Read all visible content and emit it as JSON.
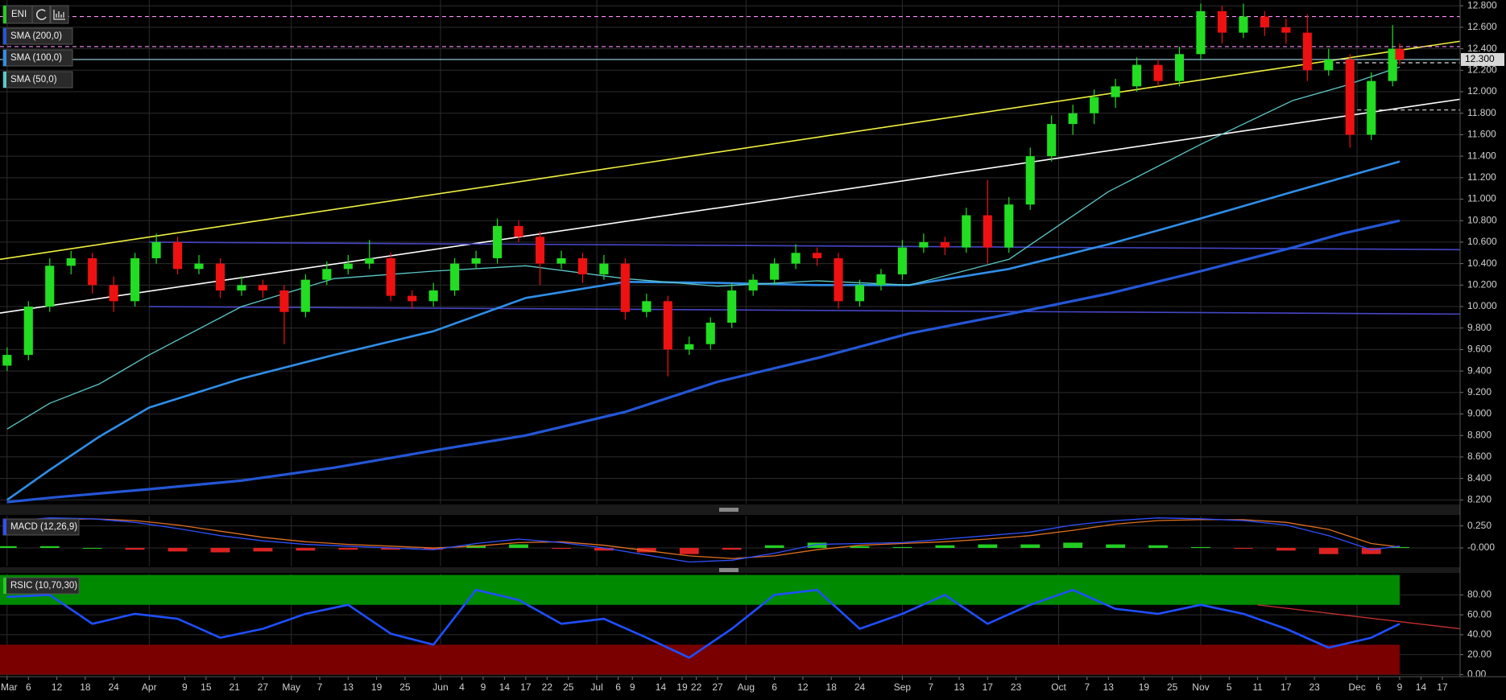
{
  "chart_data": [
    {
      "type": "candlestick",
      "title": "ENI",
      "xlim": [
        -1,
        204.5
      ],
      "ylim": [
        8.165,
        12.854
      ],
      "yticks": [
        {
          "value": 8.2,
          "label": "8.200"
        },
        {
          "value": 8.4,
          "label": "8.400"
        },
        {
          "value": 8.6,
          "label": "8.600"
        },
        {
          "value": 8.8,
          "label": "8.800"
        },
        {
          "value": 9.0,
          "label": "9.000"
        },
        {
          "value": 9.2,
          "label": "9.200"
        },
        {
          "value": 9.4,
          "label": "9.400"
        },
        {
          "value": 9.6,
          "label": "9.600"
        },
        {
          "value": 9.8,
          "label": "9.800"
        },
        {
          "value": 10.0,
          "label": "10.000"
        },
        {
          "value": 10.2,
          "label": "10.200"
        },
        {
          "value": 10.4,
          "label": "10.400"
        },
        {
          "value": 10.6,
          "label": "10.600"
        },
        {
          "value": 10.8,
          "label": "10.800"
        },
        {
          "value": 11.0,
          "label": "11.000"
        },
        {
          "value": 11.2,
          "label": "11.200"
        },
        {
          "value": 11.4,
          "label": "11.400"
        },
        {
          "value": 11.6,
          "label": "11.600"
        },
        {
          "value": 11.8,
          "label": "11.800"
        },
        {
          "value": 12.0,
          "label": "12.000"
        },
        {
          "value": 12.2,
          "label": "12.200"
        },
        {
          "value": 12.4,
          "label": "12.400"
        },
        {
          "value": 12.6,
          "label": "12.600"
        },
        {
          "value": 12.8,
          "label": "12.800"
        }
      ],
      "grid": true,
      "up_color": "#22dd22",
      "down_color": "#ee1111",
      "x": [
        0,
        3,
        6,
        9,
        12,
        15,
        18,
        21,
        24,
        27,
        30,
        33,
        36,
        39,
        42,
        45,
        48,
        51,
        54,
        57,
        60,
        63,
        66,
        69,
        72,
        75,
        78,
        81,
        84,
        87,
        90,
        93,
        96,
        99,
        102,
        105,
        108,
        111,
        114,
        117,
        120,
        123,
        126,
        129,
        132,
        135,
        138,
        141,
        144,
        147,
        150,
        153,
        156,
        159,
        162,
        165,
        168,
        171,
        174,
        177,
        180,
        183,
        186,
        189,
        192,
        195,
        196
      ],
      "open": [
        9.45,
        9.55,
        10.0,
        10.38,
        10.45,
        10.2,
        10.05,
        10.45,
        10.6,
        10.35,
        10.4,
        10.15,
        10.2,
        10.15,
        9.95,
        10.25,
        10.35,
        10.4,
        10.45,
        10.1,
        10.05,
        10.15,
        10.4,
        10.45,
        10.75,
        10.65,
        10.4,
        10.45,
        10.3,
        10.4,
        9.95,
        10.05,
        9.6,
        9.65,
        9.85,
        10.15,
        10.25,
        10.4,
        10.5,
        10.45,
        10.05,
        10.2,
        10.3,
        10.55,
        10.6,
        10.55,
        10.85,
        10.55,
        10.95,
        11.4,
        11.7,
        11.8,
        11.95,
        12.05,
        12.25,
        12.1,
        12.35,
        12.75,
        12.55,
        12.7,
        12.6,
        12.55,
        12.2,
        12.3,
        11.6,
        12.1,
        12.4
      ],
      "high": [
        9.62,
        10.05,
        10.45,
        10.52,
        10.5,
        10.28,
        10.5,
        10.68,
        10.65,
        10.48,
        10.45,
        10.28,
        10.25,
        10.2,
        10.3,
        10.42,
        10.48,
        10.62,
        10.5,
        10.15,
        10.22,
        10.45,
        10.52,
        10.82,
        10.8,
        10.7,
        10.52,
        10.5,
        10.48,
        10.45,
        10.12,
        10.1,
        9.72,
        9.9,
        10.22,
        10.3,
        10.45,
        10.58,
        10.55,
        10.5,
        10.25,
        10.35,
        10.62,
        10.68,
        10.65,
        10.92,
        11.18,
        11.02,
        11.48,
        11.78,
        11.88,
        12.02,
        12.12,
        12.32,
        12.3,
        12.42,
        12.82,
        12.8,
        12.82,
        12.75,
        12.68,
        12.72,
        12.4,
        12.35,
        12.18,
        12.62,
        12.45
      ],
      "low": [
        9.4,
        9.5,
        9.95,
        10.3,
        10.12,
        9.95,
        10.0,
        10.4,
        10.3,
        10.3,
        10.08,
        10.1,
        10.08,
        9.65,
        9.9,
        10.2,
        10.3,
        10.35,
        10.05,
        9.98,
        10.0,
        10.1,
        10.35,
        10.4,
        10.6,
        10.2,
        10.35,
        10.22,
        10.25,
        9.88,
        9.9,
        9.35,
        9.55,
        9.6,
        9.8,
        10.1,
        10.2,
        10.35,
        10.38,
        9.98,
        10.0,
        10.15,
        10.25,
        10.5,
        10.48,
        10.5,
        10.4,
        10.5,
        10.9,
        11.35,
        11.6,
        11.7,
        11.85,
        12.0,
        12.05,
        12.05,
        12.3,
        12.45,
        12.5,
        12.52,
        12.45,
        12.1,
        12.15,
        11.48,
        11.55,
        12.05,
        12.25
      ],
      "close": [
        9.55,
        10.0,
        10.38,
        10.45,
        10.2,
        10.05,
        10.45,
        10.6,
        10.35,
        10.4,
        10.15,
        10.2,
        10.15,
        9.95,
        10.25,
        10.35,
        10.4,
        10.45,
        10.1,
        10.05,
        10.15,
        10.4,
        10.45,
        10.75,
        10.65,
        10.4,
        10.45,
        10.3,
        10.4,
        9.95,
        10.05,
        9.6,
        9.65,
        9.85,
        10.15,
        10.25,
        10.4,
        10.5,
        10.45,
        10.05,
        10.2,
        10.3,
        10.55,
        10.6,
        10.55,
        10.85,
        10.55,
        10.95,
        11.4,
        11.7,
        11.8,
        11.95,
        12.05,
        12.25,
        12.1,
        12.35,
        12.75,
        12.55,
        12.7,
        12.6,
        12.55,
        12.2,
        12.3,
        11.6,
        12.1,
        12.4,
        12.3
      ],
      "series": [
        {
          "name": "SMA (200,0)",
          "color": "#2456d6",
          "line_width": 3.2,
          "x": [
            0,
            6,
            13,
            20,
            33,
            46,
            60,
            73,
            87,
            100,
            114,
            127,
            141,
            155,
            168,
            181,
            188,
            196
          ],
          "values": [
            8.18,
            8.22,
            8.26,
            8.3,
            8.38,
            8.5,
            8.66,
            8.8,
            9.02,
            9.3,
            9.52,
            9.75,
            9.93,
            10.12,
            10.33,
            10.55,
            10.68,
            10.8
          ]
        },
        {
          "name": "SMA (100,0)",
          "color": "#2f8ee8",
          "line_width": 2.6,
          "x": [
            0,
            6,
            13,
            20,
            33,
            46,
            60,
            73,
            87,
            100,
            114,
            127,
            141,
            155,
            168,
            181,
            188,
            196
          ],
          "values": [
            8.2,
            8.48,
            8.79,
            9.06,
            9.33,
            9.55,
            9.77,
            10.08,
            10.23,
            10.22,
            10.2,
            10.2,
            10.35,
            10.58,
            10.82,
            11.07,
            11.2,
            11.35
          ]
        },
        {
          "name": "SMA (50,0)",
          "color": "#5cc8c8",
          "line_width": 1.3,
          "x": [
            0,
            6,
            13,
            20,
            33,
            46,
            60,
            73,
            87,
            100,
            114,
            127,
            141,
            155,
            168,
            181,
            188,
            196
          ],
          "values": [
            8.86,
            9.1,
            9.28,
            9.55,
            10.0,
            10.26,
            10.33,
            10.38,
            10.26,
            10.19,
            10.24,
            10.2,
            10.44,
            11.07,
            11.51,
            11.92,
            12.05,
            12.23
          ]
        }
      ],
      "trendlines": [
        {
          "color": "#f0f040",
          "x": [
            -1,
            204.5
          ],
          "y": [
            10.44,
            12.47
          ]
        },
        {
          "color": "#ffffff",
          "x": [
            -1,
            204.5
          ],
          "y": [
            9.94,
            11.93
          ]
        },
        {
          "color": "#4646c8",
          "x": [
            20,
            204.5
          ],
          "y": [
            10.6,
            10.53
          ]
        },
        {
          "color": "#4646c8",
          "x": [
            20,
            204.5
          ],
          "y": [
            10.0,
            9.93
          ]
        }
      ],
      "levels": [
        {
          "value": 12.7,
          "from": -1,
          "color": "#ff90ff",
          "dash": true
        },
        {
          "value": 12.42,
          "from": -1,
          "color": "#ff90ff",
          "dash": true
        },
        {
          "value": 12.3,
          "from": -1,
          "color": "#9fd8e8",
          "dash": false
        },
        {
          "value": 12.27,
          "from": 186,
          "color": "#dddddd",
          "dash": true
        },
        {
          "value": 11.83,
          "from": 189,
          "color": "#dddddd",
          "dash": true
        }
      ],
      "last_price": {
        "value": 12.3,
        "label": "12.300"
      }
    },
    {
      "type": "macd",
      "title": "MACD (12,26,9)",
      "xlim": [
        -1,
        204.5
      ],
      "ylim": [
        -0.21,
        0.365
      ],
      "yticks": [
        {
          "value": 0.25,
          "label": "0.250"
        },
        {
          "value": 0,
          "label": "-0.000"
        }
      ],
      "grid": true,
      "x": [
        0,
        6,
        12,
        18,
        24,
        30,
        36,
        42,
        48,
        54,
        60,
        66,
        72,
        78,
        84,
        90,
        96,
        102,
        108,
        114,
        120,
        126,
        132,
        138,
        144,
        150,
        156,
        162,
        168,
        174,
        180,
        186,
        192,
        196
      ],
      "macd": {
        "color": "#3050ff",
        "values": [
          0.3,
          0.34,
          0.33,
          0.29,
          0.22,
          0.14,
          0.08,
          0.04,
          0.02,
          0.0,
          -0.02,
          0.05,
          0.1,
          0.06,
          0.0,
          -0.08,
          -0.16,
          -0.14,
          -0.06,
          0.04,
          0.05,
          0.06,
          0.1,
          0.14,
          0.18,
          0.26,
          0.31,
          0.34,
          0.33,
          0.31,
          0.26,
          0.14,
          -0.02,
          0.02
        ]
      },
      "signal": {
        "color": "#e07020",
        "values": [
          0.28,
          0.32,
          0.33,
          0.31,
          0.26,
          0.19,
          0.12,
          0.07,
          0.04,
          0.02,
          0.0,
          0.02,
          0.06,
          0.07,
          0.03,
          -0.03,
          -0.09,
          -0.12,
          -0.09,
          -0.02,
          0.03,
          0.05,
          0.07,
          0.1,
          0.14,
          0.2,
          0.27,
          0.31,
          0.32,
          0.32,
          0.29,
          0.21,
          0.05,
          0.01
        ]
      },
      "histogram": {
        "up_color": "#22cc22",
        "down_color": "#dd2222",
        "values": [
          0.02,
          0.02,
          0.0,
          -0.02,
          -0.04,
          -0.05,
          -0.04,
          -0.03,
          -0.02,
          -0.02,
          -0.02,
          0.03,
          0.04,
          -0.01,
          -0.03,
          -0.05,
          -0.07,
          -0.02,
          0.03,
          0.06,
          0.02,
          0.01,
          0.03,
          0.04,
          0.04,
          0.06,
          0.04,
          0.03,
          0.01,
          -0.01,
          -0.03,
          -0.07,
          -0.07,
          0.01
        ]
      }
    },
    {
      "type": "line",
      "title": "RSIC (10,70,30)",
      "xlim": [
        -1,
        204.5
      ],
      "ylim": [
        -2.1,
        101.3
      ],
      "yticks": [
        {
          "value": 80,
          "label": "80.00"
        },
        {
          "value": 60,
          "label": "60.00"
        },
        {
          "value": 40,
          "label": "40.00"
        },
        {
          "value": 20,
          "label": "20.00"
        },
        {
          "value": 0,
          "label": "0.00"
        }
      ],
      "grid": true,
      "bands": [
        {
          "from": 70,
          "to": 100,
          "x": [
            -1,
            196
          ],
          "color": "#008a00"
        },
        {
          "from": 0,
          "to": 30,
          "x": [
            -1,
            196
          ],
          "color": "#7a0000"
        }
      ],
      "trendlines": [
        {
          "color": "#c83030",
          "x": [
            176,
            204.5
          ],
          "y": [
            70,
            46
          ]
        }
      ],
      "xticks": [
        {
          "value": 0,
          "label": "Mar"
        },
        {
          "value": 3,
          "label": "6"
        },
        {
          "value": 7,
          "label": "12"
        },
        {
          "value": 11,
          "label": "18"
        },
        {
          "value": 15,
          "label": "24"
        },
        {
          "value": 20,
          "label": "Apr"
        },
        {
          "value": 25,
          "label": "9"
        },
        {
          "value": 28,
          "label": "15"
        },
        {
          "value": 32,
          "label": "21"
        },
        {
          "value": 36,
          "label": "27"
        },
        {
          "value": 40,
          "label": "May"
        },
        {
          "value": 44,
          "label": "7"
        },
        {
          "value": 48,
          "label": "13"
        },
        {
          "value": 52,
          "label": "19"
        },
        {
          "value": 56,
          "label": "25"
        },
        {
          "value": 61,
          "label": "Jun"
        },
        {
          "value": 64,
          "label": "4"
        },
        {
          "value": 67,
          "label": "9"
        },
        {
          "value": 70,
          "label": "14"
        },
        {
          "value": 73,
          "label": "17"
        },
        {
          "value": 76,
          "label": "22"
        },
        {
          "value": 79,
          "label": "25"
        },
        {
          "value": 83,
          "label": "Jul"
        },
        {
          "value": 86,
          "label": "6"
        },
        {
          "value": 88,
          "label": "9"
        },
        {
          "value": 92,
          "label": "14"
        },
        {
          "value": 95,
          "label": "19"
        },
        {
          "value": 97,
          "label": "22"
        },
        {
          "value": 100,
          "label": "27"
        },
        {
          "value": 104,
          "label": "Aug"
        },
        {
          "value": 108,
          "label": "6"
        },
        {
          "value": 112,
          "label": "12"
        },
        {
          "value": 116,
          "label": "18"
        },
        {
          "value": 120,
          "label": "24"
        },
        {
          "value": 126,
          "label": "Sep"
        },
        {
          "value": 130,
          "label": "7"
        },
        {
          "value": 134,
          "label": "13"
        },
        {
          "value": 138,
          "label": "17"
        },
        {
          "value": 142,
          "label": "23"
        },
        {
          "value": 148,
          "label": "Oct"
        },
        {
          "value": 152,
          "label": "7"
        },
        {
          "value": 155,
          "label": "13"
        },
        {
          "value": 160,
          "label": "19"
        },
        {
          "value": 164,
          "label": "25"
        },
        {
          "value": 168,
          "label": "Nov"
        },
        {
          "value": 172,
          "label": "5"
        },
        {
          "value": 176,
          "label": "11"
        },
        {
          "value": 180,
          "label": "17"
        },
        {
          "value": 184,
          "label": "23"
        },
        {
          "value": 190,
          "label": "Dec"
        },
        {
          "value": 193,
          "label": "6"
        },
        {
          "value": 196,
          "label": "9"
        },
        {
          "value": 199,
          "label": "14"
        },
        {
          "value": 202,
          "label": "17"
        }
      ],
      "x": [
        0,
        6,
        12,
        18,
        24,
        30,
        36,
        42,
        48,
        54,
        60,
        66,
        72,
        78,
        84,
        90,
        96,
        102,
        108,
        114,
        120,
        126,
        132,
        138,
        144,
        150,
        156,
        162,
        168,
        174,
        180,
        186,
        192,
        196
      ],
      "series": [
        {
          "color": "#1f4fff",
          "line_width": 2.6,
          "values": [
            78,
            80,
            51,
            61,
            56,
            37,
            46,
            61,
            70,
            41,
            30,
            85,
            75,
            51,
            56,
            37,
            17,
            46,
            80,
            85,
            46,
            61,
            80,
            51,
            70,
            85,
            66,
            61,
            70,
            61,
            46,
            27,
            37,
            51
          ]
        }
      ]
    }
  ]
}
